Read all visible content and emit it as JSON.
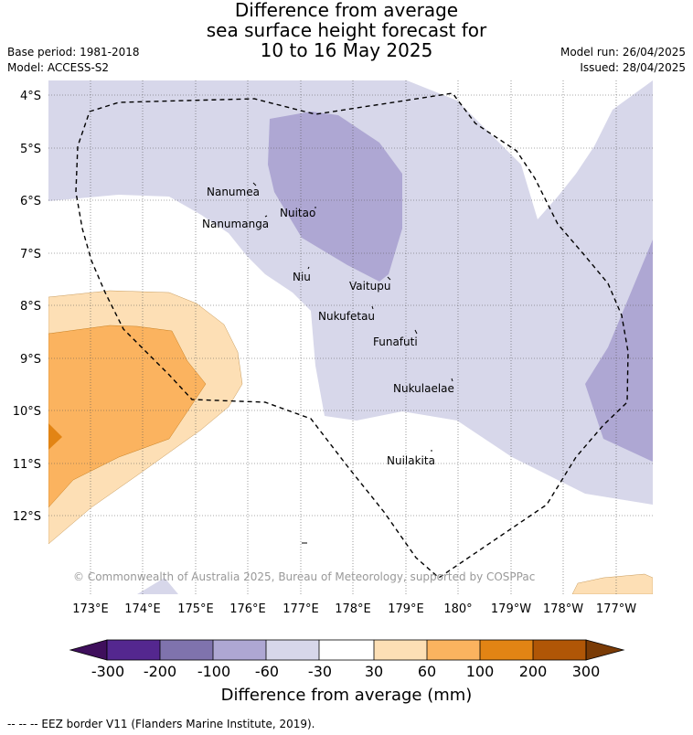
{
  "title": {
    "line1": "Difference from average",
    "line2": "sea surface height forecast for",
    "line3": "10 to 16 May 2025"
  },
  "meta": {
    "base_period": "Base period: 1981-2018",
    "model": "Model: ACCESS-S2",
    "model_run": "Model run: 26/04/2025",
    "issued": "Issued: 28/04/2025"
  },
  "copyright": "© Commonwealth of Australia 2025, Bureau of Meteorology, supported by COSPPac",
  "lat_labels": [
    "4°S",
    "5°S",
    "6°S",
    "7°S",
    "8°S",
    "9°S",
    "10°S",
    "11°S",
    "12°S"
  ],
  "lon_labels": [
    "173°E",
    "174°E",
    "175°E",
    "176°E",
    "177°E",
    "178°E",
    "179°E",
    "180°",
    "179°W",
    "178°W",
    "177°W"
  ],
  "islands": [
    {
      "name": "Nanumea"
    },
    {
      "name": "Nanumanga"
    },
    {
      "name": "Nuitao"
    },
    {
      "name": "Niu"
    },
    {
      "name": "Vaitupu"
    },
    {
      "name": "Nukufetau"
    },
    {
      "name": "Funafuti"
    },
    {
      "name": "Nukulaelae"
    },
    {
      "name": "Nuilakita"
    }
  ],
  "colorbar": {
    "title": "Difference from average (mm)",
    "ticks": [
      "-300",
      "-200",
      "-100",
      "-60",
      "-30",
      "30",
      "60",
      "100",
      "200",
      "300"
    ],
    "colors": [
      "#3f0f5c",
      "#54278f",
      "#7f73ad",
      "#aea7d3",
      "#d7d7ea",
      "#ffffff",
      "#fddfb5",
      "#fbb35f",
      "#e28414",
      "#b05606",
      "#7a3b06"
    ]
  },
  "legend_note": "--  --  -- EEZ border V11 (Flanders Marine Institute, 2019)."
}
